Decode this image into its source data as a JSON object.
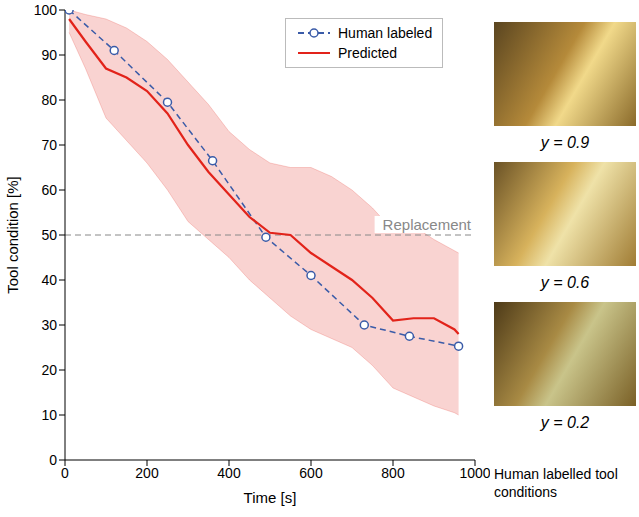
{
  "chart_data": {
    "type": "line",
    "xlabel": "Time [s]",
    "ylabel": "Tool condition [%]",
    "xlim": [
      0,
      1000
    ],
    "ylim": [
      0,
      100
    ],
    "xticks": [
      0,
      200,
      400,
      600,
      800,
      1000
    ],
    "yticks": [
      0,
      10,
      20,
      30,
      40,
      50,
      60,
      70,
      80,
      90,
      100
    ],
    "grid": false,
    "legend": "top right",
    "series": [
      {
        "name": "Human labeled",
        "color": "#3a5ba8",
        "line_style": "dashed",
        "marker": "circle",
        "x": [
          10,
          120,
          250,
          360,
          490,
          600,
          730,
          840,
          960
        ],
        "values": [
          100,
          91,
          79.5,
          66.5,
          49.5,
          41,
          30,
          27.5,
          25.3
        ]
      },
      {
        "name": "Predicted",
        "color": "#e2231a",
        "line_style": "solid",
        "marker": "none",
        "x": [
          10,
          50,
          100,
          150,
          200,
          250,
          300,
          350,
          400,
          450,
          500,
          550,
          600,
          650,
          700,
          750,
          800,
          850,
          900,
          950,
          960
        ],
        "values": [
          98,
          93,
          87,
          85,
          82,
          77,
          70,
          64,
          59,
          54,
          50.5,
          50,
          46,
          43,
          40,
          36,
          31,
          31.5,
          31.5,
          29,
          28
        ],
        "upper": [
          100,
          99,
          98,
          96,
          93,
          89,
          84,
          79,
          73,
          69,
          66,
          65,
          65,
          63,
          60,
          56,
          51,
          52,
          49,
          46.5,
          46
        ],
        "lower": [
          95,
          87,
          76,
          71,
          66,
          60,
          53,
          49,
          45,
          40,
          36,
          32,
          29,
          27,
          25,
          21,
          16,
          14,
          12,
          10.5,
          10
        ]
      }
    ],
    "reference_lines": [
      {
        "y": 50,
        "label": "Replacement",
        "color": "#888888",
        "line_style": "dashed"
      }
    ]
  },
  "side_panel": {
    "images": [
      {
        "caption": "y = 0.9"
      },
      {
        "caption": "y = 0.6"
      },
      {
        "caption": "y = 0.2"
      }
    ],
    "caption": "Human labelled tool conditions"
  }
}
